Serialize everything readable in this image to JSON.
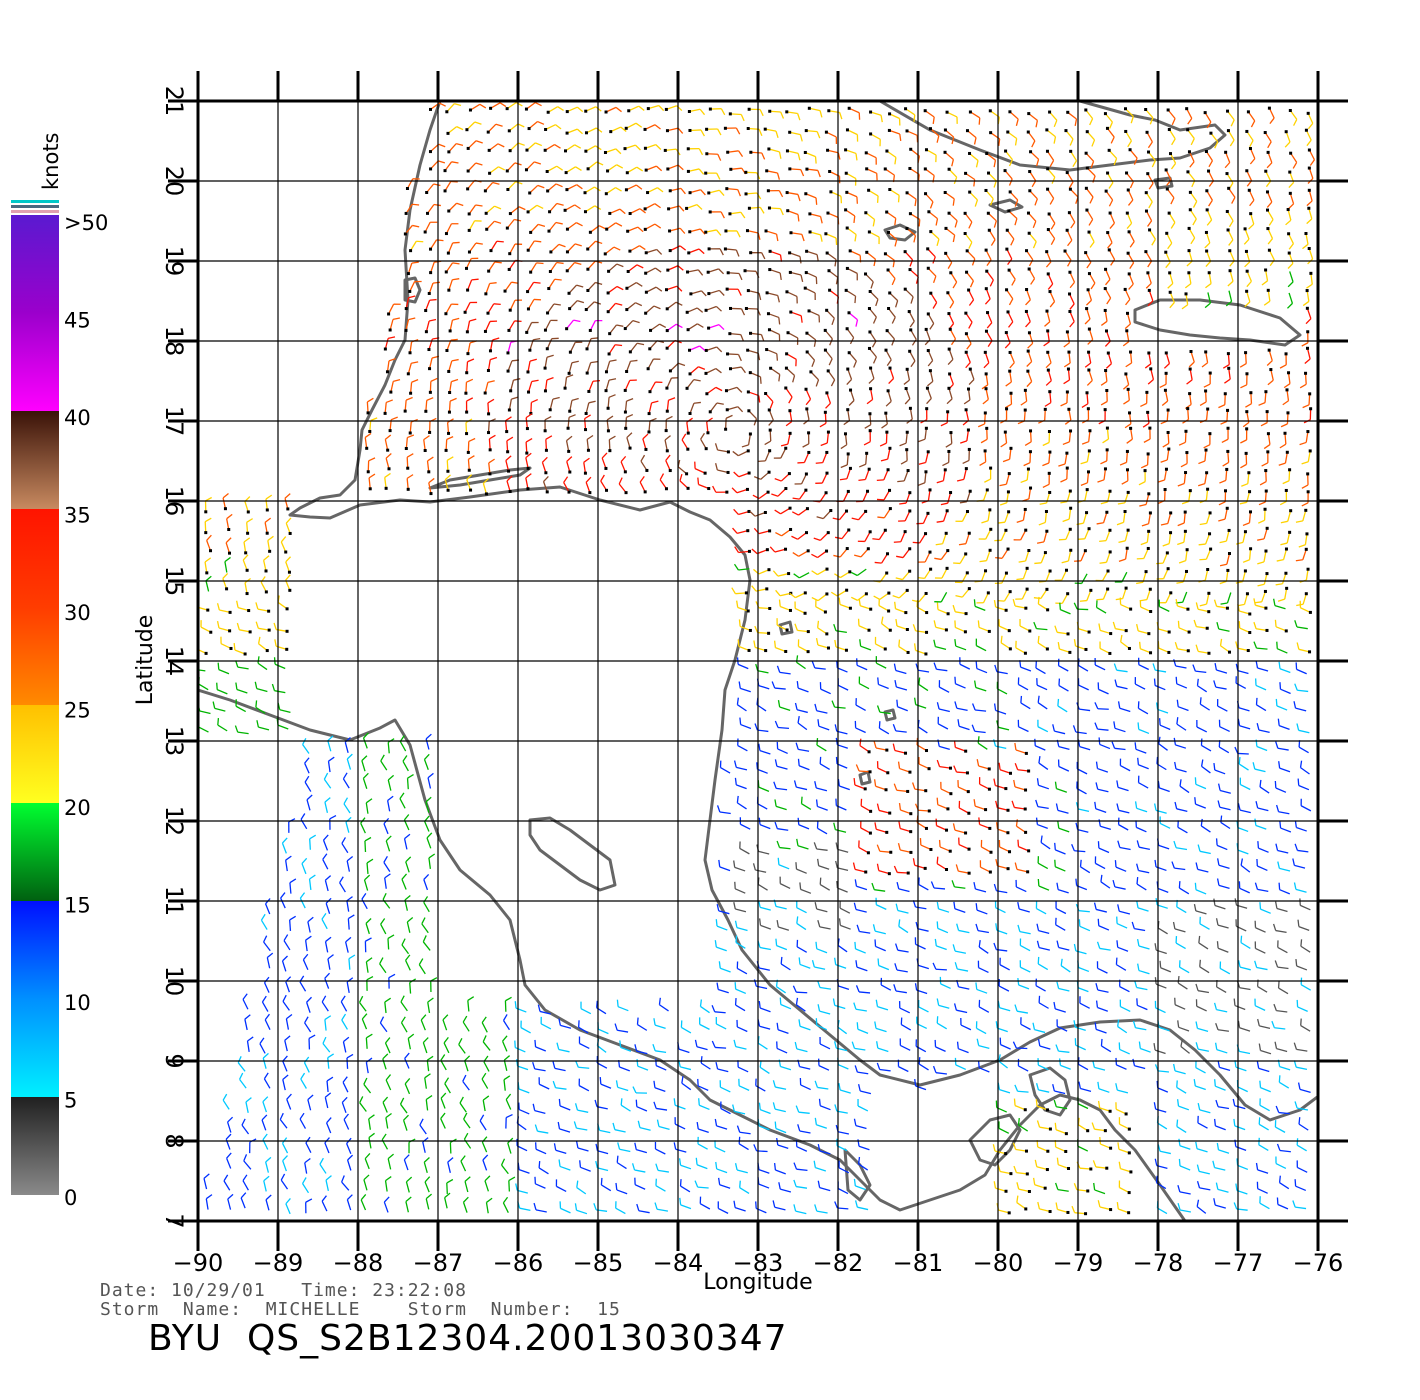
{
  "map": {
    "lat_range": [
      7,
      21
    ],
    "lon_range": [
      -90,
      -76
    ],
    "lat_ticks": [
      "7",
      "8",
      "9",
      "10",
      "11",
      "12",
      "13",
      "14",
      "15",
      "16",
      "17",
      "18",
      "19",
      "20",
      "21"
    ],
    "lon_ticks": [
      "−90",
      "−89",
      "−88",
      "−87",
      "−86",
      "−85",
      "−84",
      "−83",
      "−82",
      "−81",
      "−80",
      "−79",
      "−78",
      "−77",
      "−76"
    ],
    "xlabel": "Longitude",
    "ylabel": "Latitude",
    "grid": true,
    "coastline_color": "#666666",
    "vector_type": "wind barbs",
    "storm_center_approx": {
      "lat": 16.9,
      "lon": -83.3
    }
  },
  "legend": {
    "unit": "knots",
    "labels": [
      ">50",
      "45",
      "40",
      "35",
      "30",
      "25",
      "20",
      "15",
      "10",
      "5",
      "0"
    ],
    "colors": {
      "0-5": "#555555",
      "5-10": "#00c8ff",
      "10-15": "#0030ff",
      "15-20": "#00b400",
      "20-25": "#ffd200",
      "25-30": "#ff5a00",
      "30-35": "#ff1400",
      "35-40": "#8b4a2a",
      "40-45": "#ff00ff",
      "45-50": "#6a00c8"
    }
  },
  "info": {
    "date_line": "Date: 10/29/01   Time: 23:22:08",
    "storm_line": "Storm  Name:  MICHELLE    Storm  Number:  15"
  },
  "product_id": "BYU  QS_S2B12304.20013030347"
}
